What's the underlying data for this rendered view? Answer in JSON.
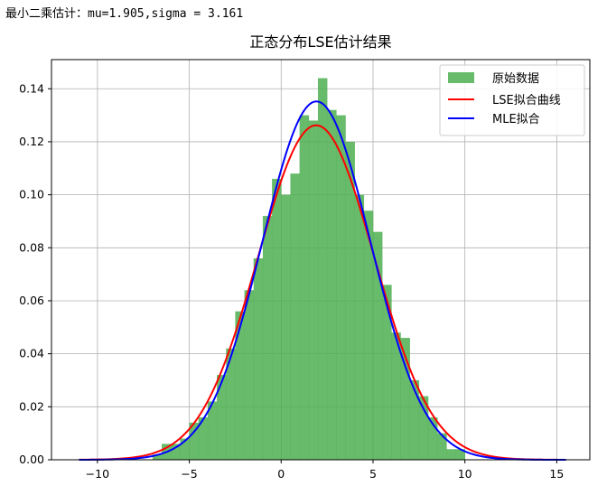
{
  "console": {
    "output": "最小二乘估计：mu=1.905,sigma = 3.161"
  },
  "chart_data": {
    "type": "bar",
    "title": "正态分布LSE估计结果",
    "xlabel": "",
    "ylabel": "",
    "xlim": [
      -12.5,
      16.8
    ],
    "ylim": [
      0,
      0.151
    ],
    "grid": true,
    "legend_position": "top-right",
    "x_ticks": [
      -10,
      -5,
      0,
      5,
      10,
      15
    ],
    "x_tick_labels": [
      "−10",
      "−5",
      "0",
      "5",
      "10",
      "15"
    ],
    "y_ticks": [
      0.0,
      0.02,
      0.04,
      0.06,
      0.08,
      0.1,
      0.12,
      0.14
    ],
    "y_tick_labels": [
      "0.00",
      "0.02",
      "0.04",
      "0.06",
      "0.08",
      "0.10",
      "0.12",
      "0.14"
    ],
    "histogram": {
      "name": "原始数据",
      "color": "#4caf50",
      "bin_width": 0.5,
      "bins": [
        {
          "x0": -7.0,
          "value": 0.002
        },
        {
          "x0": -6.5,
          "value": 0.006
        },
        {
          "x0": -6.0,
          "value": 0.006
        },
        {
          "x0": -5.5,
          "value": 0.008
        },
        {
          "x0": -5.0,
          "value": 0.014
        },
        {
          "x0": -4.5,
          "value": 0.016
        },
        {
          "x0": -4.0,
          "value": 0.022
        },
        {
          "x0": -3.5,
          "value": 0.032
        },
        {
          "x0": -3.0,
          "value": 0.042
        },
        {
          "x0": -2.5,
          "value": 0.056
        },
        {
          "x0": -2.0,
          "value": 0.064
        },
        {
          "x0": -1.5,
          "value": 0.076
        },
        {
          "x0": -1.0,
          "value": 0.092
        },
        {
          "x0": -0.5,
          "value": 0.106
        },
        {
          "x0": 0.0,
          "value": 0.1
        },
        {
          "x0": 0.5,
          "value": 0.108
        },
        {
          "x0": 1.0,
          "value": 0.13
        },
        {
          "x0": 1.5,
          "value": 0.128
        },
        {
          "x0": 2.0,
          "value": 0.144
        },
        {
          "x0": 2.5,
          "value": 0.132
        },
        {
          "x0": 3.0,
          "value": 0.13
        },
        {
          "x0": 3.5,
          "value": 0.12
        },
        {
          "x0": 4.0,
          "value": 0.1
        },
        {
          "x0": 4.5,
          "value": 0.094
        },
        {
          "x0": 5.0,
          "value": 0.086
        },
        {
          "x0": 5.5,
          "value": 0.066
        },
        {
          "x0": 6.0,
          "value": 0.048
        },
        {
          "x0": 6.5,
          "value": 0.046
        },
        {
          "x0": 7.0,
          "value": 0.03
        },
        {
          "x0": 7.5,
          "value": 0.024
        },
        {
          "x0": 8.0,
          "value": 0.016
        },
        {
          "x0": 8.5,
          "value": 0.01
        },
        {
          "x0": 9.0,
          "value": 0.004
        },
        {
          "x0": 9.5,
          "value": 0.004
        }
      ]
    },
    "series": [
      {
        "name": "LSE拟合曲线",
        "type": "line",
        "color": "#ff0000",
        "mu": 1.905,
        "sigma": 3.161,
        "x_range": [
          -11.0,
          15.5
        ]
      },
      {
        "name": "MLE拟合",
        "type": "line",
        "color": "#0000ff",
        "mu": 1.92,
        "sigma": 2.95,
        "x_range": [
          -11.0,
          15.5
        ]
      }
    ]
  }
}
